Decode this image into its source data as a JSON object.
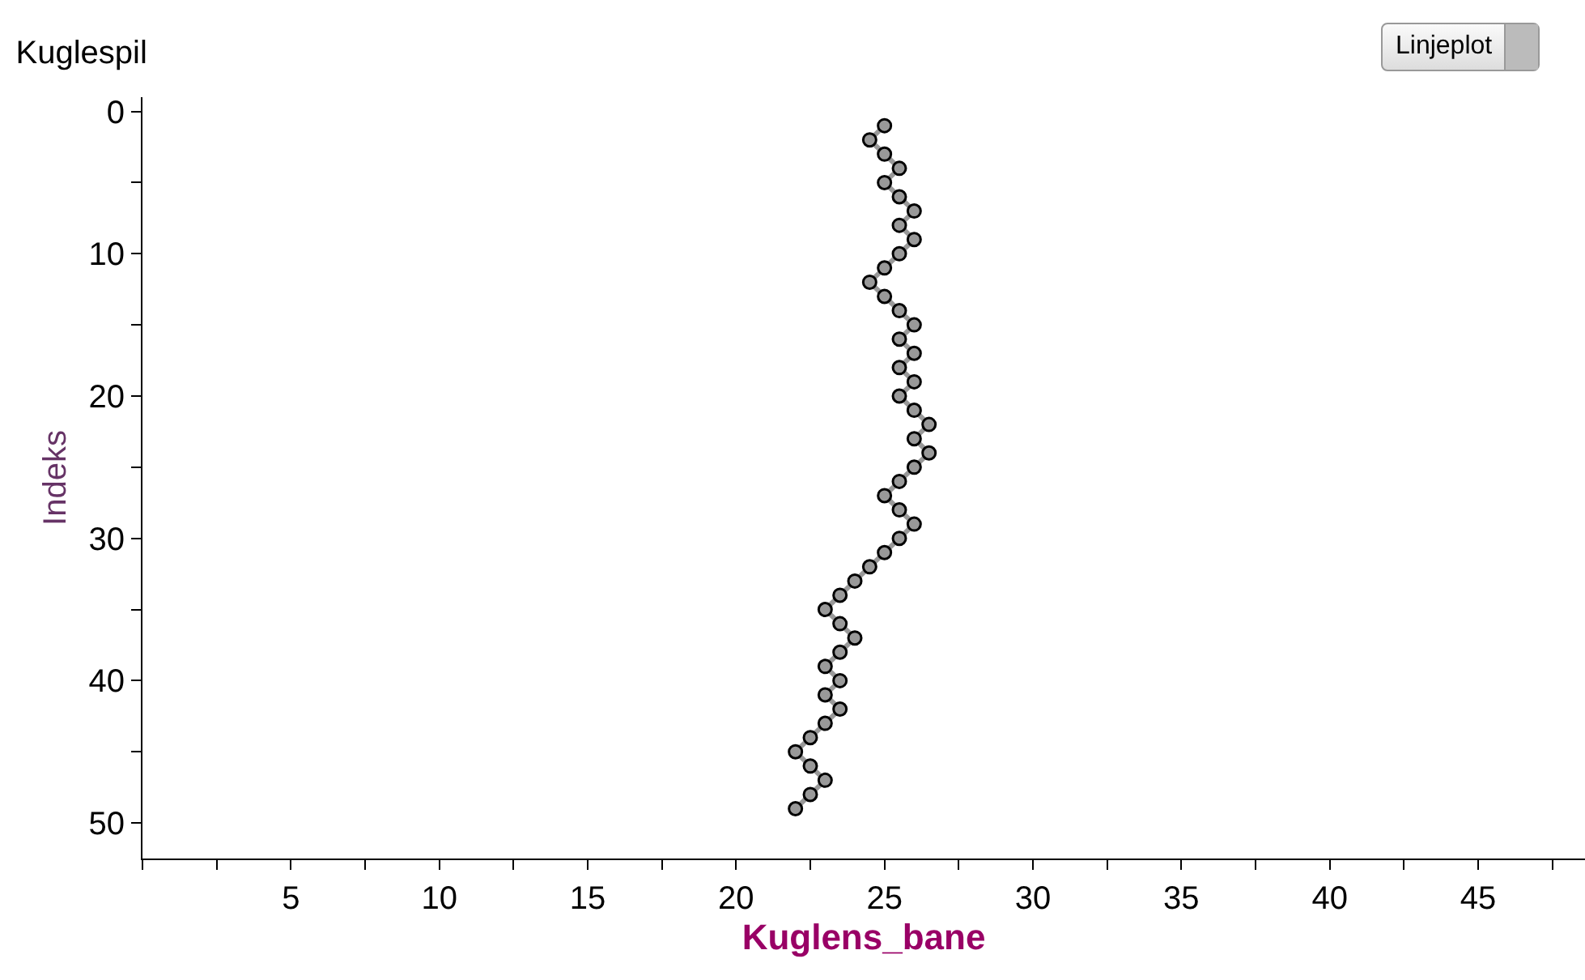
{
  "chart_data": {
    "type": "line",
    "title": "Kuglespil",
    "xlabel": "Kuglens_bane",
    "ylabel": "Indeks",
    "annotations": [
      "Linjeplot"
    ],
    "series": [
      {
        "color": "#999999",
        "x": [
          25,
          24.5,
          25,
          25.5,
          25,
          25.5,
          26,
          25.5,
          26,
          25.5,
          25,
          24.5,
          25,
          25.5,
          26,
          25.5,
          26,
          25.5,
          26,
          25.5,
          26,
          26.5,
          26,
          26.5,
          26,
          25.5,
          25,
          25.5,
          26,
          25.5,
          25,
          24.5,
          24,
          23.5,
          23,
          23.5,
          24,
          23.5,
          23,
          23.5,
          23,
          23.5,
          23,
          22.5,
          22,
          22.5,
          23,
          22.5,
          22
        ],
        "values": [
          1,
          2,
          3,
          4,
          5,
          6,
          7,
          8,
          9,
          10,
          11,
          12,
          13,
          14,
          15,
          16,
          17,
          18,
          19,
          20,
          21,
          22,
          23,
          24,
          25,
          26,
          27,
          28,
          29,
          30,
          31,
          32,
          33,
          34,
          35,
          36,
          37,
          38,
          39,
          40,
          41,
          42,
          43,
          44,
          45,
          46,
          47,
          48,
          49
        ]
      }
    ],
    "xlim": [
      0,
      48.6
    ],
    "xticks": [
      {
        "value": 0,
        "label": null
      },
      {
        "value": 2.5,
        "label": null
      },
      5,
      {
        "value": 7.5,
        "label": null
      },
      10,
      {
        "value": 12.5,
        "label": null
      },
      15,
      {
        "value": 17.5,
        "label": null
      },
      20,
      {
        "value": 22.5,
        "label": null
      },
      25,
      {
        "value": 27.5,
        "label": null
      },
      30,
      {
        "value": 32.5,
        "label": null
      },
      35,
      {
        "value": 37.5,
        "label": null
      },
      40,
      {
        "value": 42.5,
        "label": null
      },
      45,
      {
        "value": 47.5,
        "label": null
      }
    ],
    "ylim": [
      52.5,
      -1
    ],
    "yticks": [
      0,
      {
        "value": 5,
        "label": null
      },
      10,
      {
        "value": 15,
        "label": null
      },
      20,
      {
        "value": 25,
        "label": null
      },
      30,
      {
        "value": 35,
        "label": null
      },
      40,
      {
        "value": 45,
        "label": null
      },
      50
    ],
    "grid": false,
    "marker": "circle",
    "line_style": "solid"
  }
}
